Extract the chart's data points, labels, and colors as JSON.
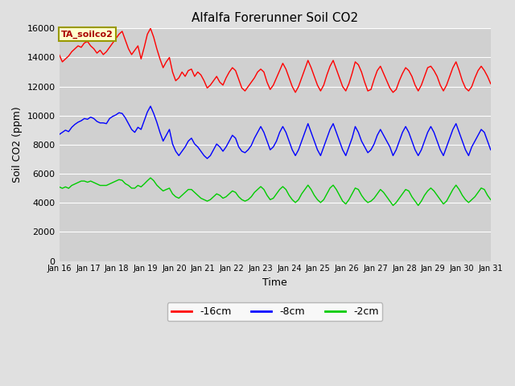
{
  "title": "Alfalfa Forerunner Soil CO2",
  "xlabel": "Time",
  "ylabel": "Soil CO2 (ppm)",
  "ylim": [
    0,
    16000
  ],
  "yticks": [
    0,
    2000,
    4000,
    6000,
    8000,
    10000,
    12000,
    14000,
    16000
  ],
  "bg_color": "#e0e0e0",
  "plot_bg_color": "#d0d0d0",
  "legend_box_color": "#ffffcc",
  "legend_box_edge_color": "#999900",
  "legend_label": "TA_soilco2",
  "legend_text_color": "#aa0000",
  "line_colors": [
    "#ff0000",
    "#0000ff",
    "#00cc00"
  ],
  "line_labels": [
    "-16cm",
    "-8cm",
    "-2cm"
  ],
  "line_width": 1.0,
  "red_data": [
    14200,
    13700,
    13900,
    14100,
    14400,
    14600,
    14800,
    14700,
    15000,
    15100,
    14800,
    14600,
    14300,
    14500,
    14200,
    14400,
    14700,
    15000,
    15300,
    15600,
    15800,
    15200,
    14600,
    14200,
    14500,
    14800,
    13900,
    14700,
    15600,
    16000,
    15400,
    14600,
    13900,
    13300,
    13700,
    14000,
    13000,
    12400,
    12600,
    13000,
    12700,
    13100,
    13200,
    12700,
    13000,
    12800,
    12400,
    11900,
    12100,
    12400,
    12700,
    12300,
    12100,
    12600,
    13000,
    13300,
    13100,
    12500,
    11900,
    11700,
    12000,
    12300,
    12600,
    13000,
    13200,
    13000,
    12300,
    11800,
    12100,
    12600,
    13100,
    13600,
    13200,
    12600,
    12000,
    11600,
    12000,
    12600,
    13200,
    13800,
    13300,
    12700,
    12100,
    11700,
    12100,
    12800,
    13400,
    13800,
    13200,
    12600,
    12000,
    11700,
    12200,
    12900,
    13700,
    13500,
    13000,
    12300,
    11700,
    11800,
    12500,
    13100,
    13400,
    12900,
    12400,
    11900,
    11600,
    11800,
    12400,
    12900,
    13300,
    13100,
    12700,
    12100,
    11700,
    12100,
    12700,
    13300,
    13400,
    13100,
    12700,
    12100,
    11700,
    12100,
    12700,
    13300,
    13700,
    13100,
    12400,
    11900,
    11700,
    12000,
    12600,
    13100,
    13400,
    13100,
    12700,
    12200
  ],
  "blue_data": [
    8700,
    8850,
    9000,
    8900,
    9200,
    9400,
    9550,
    9650,
    9800,
    9750,
    9900,
    9800,
    9600,
    9500,
    9500,
    9450,
    9800,
    9950,
    10050,
    10200,
    10150,
    9850,
    9450,
    9050,
    8850,
    9200,
    9050,
    9650,
    10250,
    10650,
    10150,
    9550,
    8850,
    8250,
    8650,
    9050,
    8050,
    7550,
    7250,
    7550,
    7850,
    8250,
    8450,
    8050,
    7850,
    7550,
    7250,
    7050,
    7250,
    7650,
    8050,
    7850,
    7550,
    7850,
    8250,
    8650,
    8450,
    7850,
    7550,
    7450,
    7650,
    7950,
    8450,
    8850,
    9250,
    8850,
    8250,
    7650,
    7850,
    8250,
    8850,
    9250,
    8850,
    8250,
    7650,
    7250,
    7650,
    8250,
    8850,
    9450,
    8850,
    8250,
    7650,
    7250,
    7850,
    8450,
    9050,
    9450,
    8850,
    8250,
    7650,
    7250,
    7850,
    8450,
    9250,
    8850,
    8250,
    7850,
    7450,
    7650,
    8050,
    8650,
    9050,
    8650,
    8250,
    7850,
    7250,
    7650,
    8250,
    8850,
    9250,
    8850,
    8250,
    7650,
    7250,
    7650,
    8250,
    8850,
    9250,
    8850,
    8250,
    7650,
    7250,
    7850,
    8450,
    9050,
    9450,
    8850,
    8250,
    7650,
    7250,
    7850,
    8250,
    8650,
    9050,
    8850,
    8250,
    7650
  ],
  "green_data": [
    5100,
    5000,
    5100,
    5000,
    5200,
    5300,
    5400,
    5500,
    5500,
    5420,
    5500,
    5400,
    5300,
    5200,
    5200,
    5200,
    5300,
    5400,
    5500,
    5600,
    5550,
    5320,
    5200,
    5010,
    5010,
    5200,
    5100,
    5300,
    5520,
    5720,
    5530,
    5220,
    5010,
    4820,
    4920,
    5010,
    4620,
    4420,
    4320,
    4520,
    4720,
    4920,
    4920,
    4720,
    4520,
    4320,
    4220,
    4120,
    4220,
    4420,
    4620,
    4520,
    4320,
    4420,
    4620,
    4820,
    4720,
    4420,
    4220,
    4120,
    4220,
    4420,
    4720,
    4920,
    5120,
    4920,
    4520,
    4220,
    4320,
    4620,
    4920,
    5120,
    4920,
    4520,
    4220,
    4020,
    4220,
    4620,
    4920,
    5220,
    4920,
    4520,
    4220,
    4020,
    4220,
    4620,
    5020,
    5220,
    4920,
    4520,
    4120,
    3920,
    4220,
    4620,
    5020,
    4920,
    4520,
    4220,
    4020,
    4120,
    4320,
    4620,
    4920,
    4720,
    4420,
    4120,
    3820,
    4020,
    4320,
    4620,
    4920,
    4820,
    4420,
    4120,
    3820,
    4120,
    4520,
    4820,
    5020,
    4820,
    4520,
    4220,
    3920,
    4120,
    4520,
    4920,
    5220,
    4920,
    4520,
    4220,
    4020,
    4220,
    4420,
    4720,
    5020,
    4920,
    4520,
    4220
  ]
}
